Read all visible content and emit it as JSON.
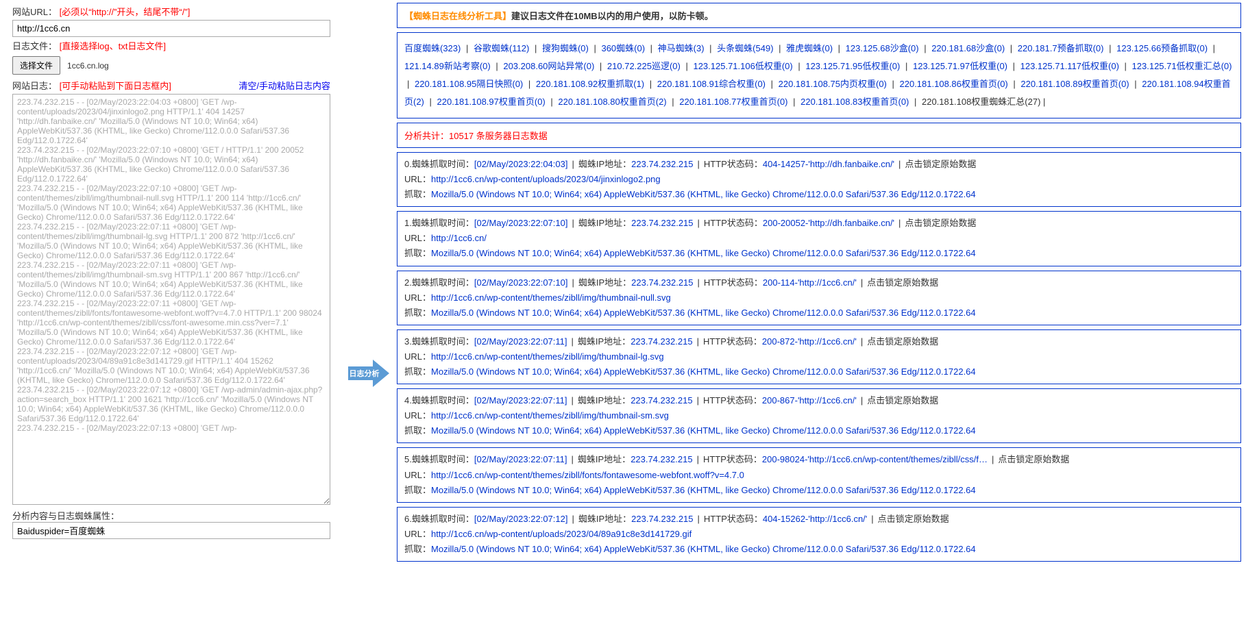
{
  "left": {
    "url_label": "网站URL：",
    "url_hint": "[必须以“http://”开头，结尾不带“/”]",
    "url_value": "http://1cc6.cn",
    "file_label": "日志文件：",
    "file_hint": "[直接选择log、txt日志文件]",
    "file_btn": "选择文件",
    "file_name": "1cc6.cn.log",
    "logtext_label": "网站日志：",
    "logtext_hint": "[可手动粘贴到下面日志框内]",
    "clear_link": "清空/手动粘贴日志内容",
    "log_content": "223.74.232.215 - - [02/May/2023:22:04:03 +0800] 'GET /wp-content/uploads/2023/04/jinxinlogo2.png HTTP/1.1' 404 14257 'http://dh.fanbaike.cn/' 'Mozilla/5.0 (Windows NT 10.0; Win64; x64) AppleWebKit/537.36 (KHTML, like Gecko) Chrome/112.0.0.0 Safari/537.36 Edg/112.0.1722.64'\n223.74.232.215 - - [02/May/2023:22:07:10 +0800] 'GET / HTTP/1.1' 200 20052 'http://dh.fanbaike.cn/' 'Mozilla/5.0 (Windows NT 10.0; Win64; x64) AppleWebKit/537.36 (KHTML, like Gecko) Chrome/112.0.0.0 Safari/537.36 Edg/112.0.1722.64'\n223.74.232.215 - - [02/May/2023:22:07:10 +0800] 'GET /wp-content/themes/zibll/img/thumbnail-null.svg HTTP/1.1' 200 114 'http://1cc6.cn/' 'Mozilla/5.0 (Windows NT 10.0; Win64; x64) AppleWebKit/537.36 (KHTML, like Gecko) Chrome/112.0.0.0 Safari/537.36 Edg/112.0.1722.64'\n223.74.232.215 - - [02/May/2023:22:07:11 +0800] 'GET /wp-content/themes/zibll/img/thumbnail-lg.svg HTTP/1.1' 200 872 'http://1cc6.cn/' 'Mozilla/5.0 (Windows NT 10.0; Win64; x64) AppleWebKit/537.36 (KHTML, like Gecko) Chrome/112.0.0.0 Safari/537.36 Edg/112.0.1722.64'\n223.74.232.215 - - [02/May/2023:22:07:11 +0800] 'GET /wp-content/themes/zibll/img/thumbnail-sm.svg HTTP/1.1' 200 867 'http://1cc6.cn/' 'Mozilla/5.0 (Windows NT 10.0; Win64; x64) AppleWebKit/537.36 (KHTML, like Gecko) Chrome/112.0.0.0 Safari/537.36 Edg/112.0.1722.64'\n223.74.232.215 - - [02/May/2023:22:07:11 +0800] 'GET /wp-content/themes/zibll/fonts/fontawesome-webfont.woff?v=4.7.0 HTTP/1.1' 200 98024 'http://1cc6.cn/wp-content/themes/zibll/css/font-awesome.min.css?ver=7.1' 'Mozilla/5.0 (Windows NT 10.0; Win64; x64) AppleWebKit/537.36 (KHTML, like Gecko) Chrome/112.0.0.0 Safari/537.36 Edg/112.0.1722.64'\n223.74.232.215 - - [02/May/2023:22:07:12 +0800] 'GET /wp-content/uploads/2023/04/89a91c8e3d141729.gif HTTP/1.1' 404 15262 'http://1cc6.cn/' 'Mozilla/5.0 (Windows NT 10.0; Win64; x64) AppleWebKit/537.36 (KHTML, like Gecko) Chrome/112.0.0.0 Safari/537.36 Edg/112.0.1722.64'\n223.74.232.215 - - [02/May/2023:22:07:12 +0800] 'GET /wp-admin/admin-ajax.php?action=search_box HTTP/1.1' 200 1621 'http://1cc6.cn/' 'Mozilla/5.0 (Windows NT 10.0; Win64; x64) AppleWebKit/537.36 (KHTML, like Gecko) Chrome/112.0.0.0 Safari/537.36 Edg/112.0.1722.64'\n223.74.232.215 - - [02/May/2023:22:07:13 +0800] 'GET /wp-",
    "attr_label": "分析内容与日志蜘蛛属性：",
    "attr_value": "Baiduspider=百度蜘蛛"
  },
  "arrow_label": "日志分析",
  "notice": {
    "tag": "【蜘蛛日志在线分析工具】",
    "text": "建议日志文件在10MB以内的用户使用，以防卡顿。"
  },
  "stats": [
    "百度蜘蛛(323)",
    "谷歌蜘蛛(112)",
    "搜狗蜘蛛(0)",
    "360蜘蛛(0)",
    "神马蜘蛛(3)",
    "头条蜘蛛(549)",
    "雅虎蜘蛛(0)",
    "123.125.68沙盒(0)",
    "220.181.68沙盒(0)",
    "220.181.7预备抓取(0)",
    "123.125.66预备抓取(0)",
    "121.14.89新站考察(0)",
    "203.208.60网站异常(0)",
    "210.72.225巡逻(0)",
    "123.125.71.106低权重(0)",
    "123.125.71.95低权重(0)",
    "123.125.71.97低权重(0)",
    "123.125.71.117低权重(0)",
    "123.125.71低权重汇总(0)",
    "220.181.108.95隔日快照(0)",
    "220.181.108.92权重抓取(1)",
    "220.181.108.91综合权重(0)",
    "220.181.108.75内页权重(0)",
    "220.181.108.86权重首页(0)",
    "220.181.108.89权重首页(0)",
    "220.181.108.94权重首页(2)",
    "220.181.108.97权重首页(0)",
    "220.181.108.80权重首页(2)",
    "220.181.108.77权重首页(0)",
    "220.181.108.83权重首页(0)"
  ],
  "stats_tail": "220.181.108权重蜘蛛汇总(27)",
  "summary": "分析共计：10517 条服务器日志数据",
  "lock_label": "点击锁定原始数据",
  "ua": "Mozilla/5.0 (Windows NT 10.0; Win64; x64) AppleWebKit/537.36 (KHTML, like Gecko) Chrome/112.0.0.0 Safari/537.36 Edg/112.0.1722.64",
  "entries": [
    {
      "idx": "0",
      "time": "[02/May/2023:22:04:03]",
      "ip": "223.74.232.215",
      "code": "404-14257-'http://dh.fanbaike.cn/'",
      "url": "http://1cc6.cn/wp-content/uploads/2023/04/jinxinlogo2.png"
    },
    {
      "idx": "1",
      "time": "[02/May/2023:22:07:10]",
      "ip": "223.74.232.215",
      "code": "200-20052-'http://dh.fanbaike.cn/'",
      "url": "http://1cc6.cn/"
    },
    {
      "idx": "2",
      "time": "[02/May/2023:22:07:10]",
      "ip": "223.74.232.215",
      "code": "200-114-'http://1cc6.cn/'",
      "url": "http://1cc6.cn/wp-content/themes/zibll/img/thumbnail-null.svg"
    },
    {
      "idx": "3",
      "time": "[02/May/2023:22:07:11]",
      "ip": "223.74.232.215",
      "code": "200-872-'http://1cc6.cn/'",
      "url": "http://1cc6.cn/wp-content/themes/zibll/img/thumbnail-lg.svg"
    },
    {
      "idx": "4",
      "time": "[02/May/2023:22:07:11]",
      "ip": "223.74.232.215",
      "code": "200-867-'http://1cc6.cn/'",
      "url": "http://1cc6.cn/wp-content/themes/zibll/img/thumbnail-sm.svg"
    },
    {
      "idx": "5",
      "time": "[02/May/2023:22:07:11]",
      "ip": "223.74.232.215",
      "code": "200-98024-'http://1cc6.cn/wp-content/themes/zibll/css/f…",
      "url": "http://1cc6.cn/wp-content/themes/zibll/fonts/fontawesome-webfont.woff?v=4.7.0"
    },
    {
      "idx": "6",
      "time": "[02/May/2023:22:07:12]",
      "ip": "223.74.232.215",
      "code": "404-15262-'http://1cc6.cn/'",
      "url": "http://1cc6.cn/wp-content/uploads/2023/04/89a91c8e3d141729.gif"
    }
  ],
  "labels": {
    "time": ".蜘蛛抓取时间：",
    "ip": "蜘蛛IP地址：",
    "code": "HTTP状态码：",
    "url": "URL：",
    "fetch": "抓取："
  }
}
